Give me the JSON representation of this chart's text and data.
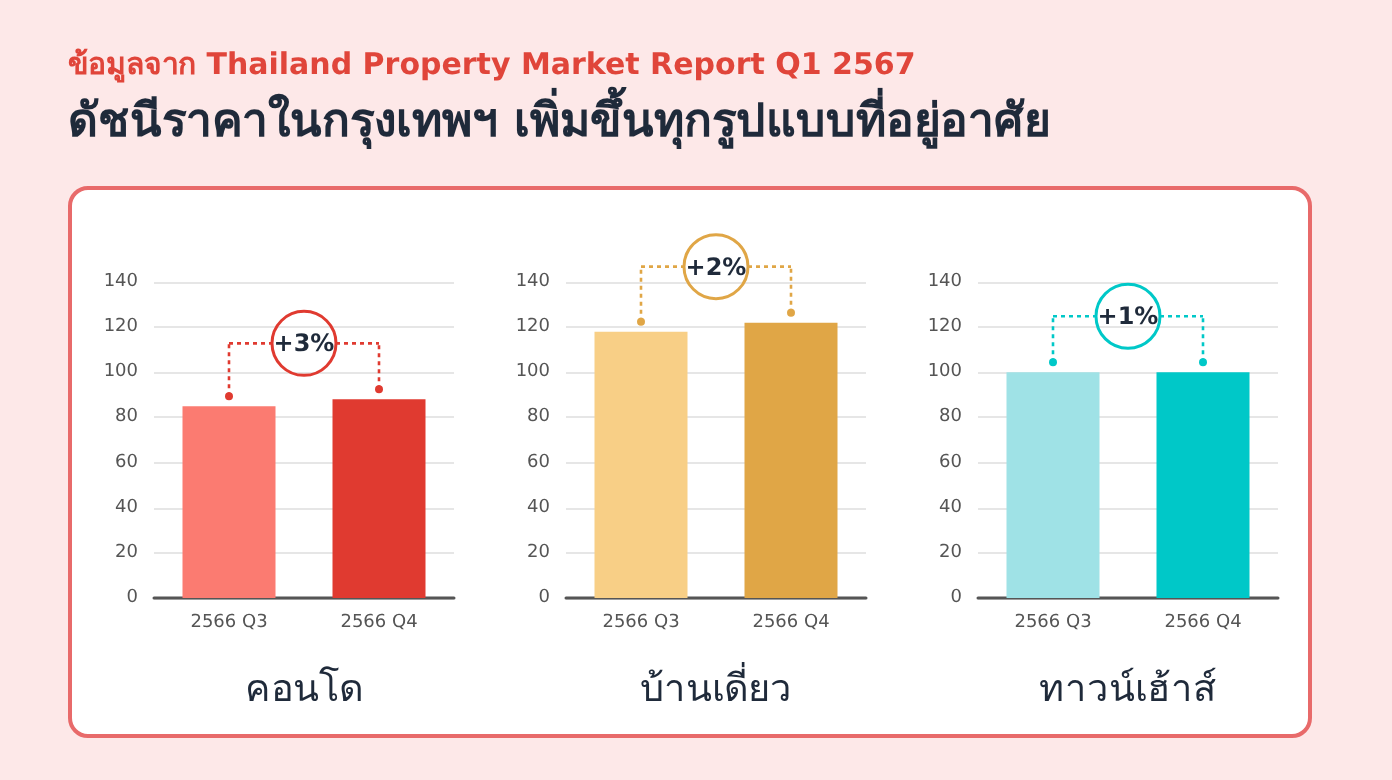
{
  "chart_data": [
    {
      "type": "bar",
      "subtitle": "ข้อมูลจาก Thailand Property Market Report Q1 2567",
      "title": "ดัชนีราคาในกรุงเทพฯ เพิ่มขึ้นทุกรูปแบบที่อยู่อาศัย",
      "xlabel": "คอนโด",
      "categories": [
        "2566 Q3",
        "2566 Q4"
      ],
      "values": [
        85,
        88
      ],
      "colors": [
        "#fb7b71",
        "#e03a30"
      ],
      "ylim": [
        0,
        140
      ],
      "yticks": [
        0,
        20,
        40,
        60,
        80,
        100,
        120,
        140
      ],
      "grid": "y",
      "annotations": [
        "+3%"
      ]
    },
    {
      "type": "bar",
      "xlabel": "บ้านเดี่ยว",
      "categories": [
        "2566 Q3",
        "2566 Q4"
      ],
      "values": [
        118,
        122
      ],
      "colors": [
        "#f8cf86",
        "#e0a646"
      ],
      "ylim": [
        0,
        140
      ],
      "yticks": [
        0,
        20,
        40,
        60,
        80,
        100,
        120,
        140
      ],
      "grid": "y",
      "annotations": [
        "+2%"
      ]
    },
    {
      "type": "bar",
      "xlabel": "ทาวน์เฮ้าส์",
      "categories": [
        "2566 Q3",
        "2566 Q4"
      ],
      "values": [
        100,
        100
      ],
      "colors": [
        "#9fe2e6",
        "#00c8c8"
      ],
      "ylim": [
        0,
        140
      ],
      "yticks": [
        0,
        20,
        40,
        60,
        80,
        100,
        120,
        140
      ],
      "grid": "y",
      "annotations": [
        "+1%"
      ]
    }
  ]
}
